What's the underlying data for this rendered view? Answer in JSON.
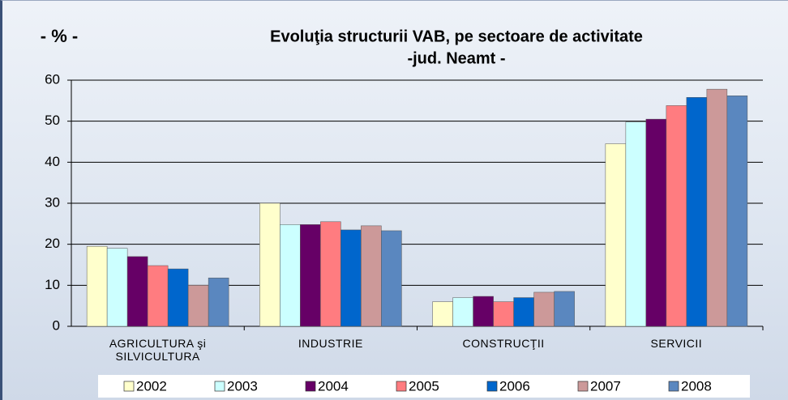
{
  "chart_data": {
    "type": "bar",
    "title": "Evoluţia structurii VAB, pe sectoare de activitate",
    "subtitle": "-jud. Neamt -",
    "y_label": "- % -",
    "categories": [
      "AGRICULTURA şi SILVICULTURA",
      "INDUSTRIE",
      "CONSTRUCŢII",
      "SERVICII"
    ],
    "series": [
      {
        "name": "2002",
        "color": "#ffffcc",
        "values": [
          19.5,
          30,
          6,
          44.5
        ]
      },
      {
        "name": "2003",
        "color": "#ccffff",
        "values": [
          19,
          24.8,
          7,
          49.8
        ]
      },
      {
        "name": "2004",
        "color": "#660066",
        "values": [
          17,
          24.8,
          7.3,
          50.5
        ]
      },
      {
        "name": "2005",
        "color": "#ff7c80",
        "values": [
          14.8,
          25.5,
          6,
          53.8
        ]
      },
      {
        "name": "2006",
        "color": "#0066cc",
        "values": [
          14,
          23.5,
          7,
          55.8
        ]
      },
      {
        "name": "2007",
        "color": "#cc9999",
        "values": [
          10,
          24.5,
          8.3,
          57.8
        ]
      },
      {
        "name": "2008",
        "color": "#5a87bf",
        "values": [
          11.8,
          23.3,
          8.5,
          56.2
        ]
      }
    ],
    "ylim": [
      0,
      60
    ],
    "yticks": [
      0,
      10,
      20,
      30,
      40,
      50,
      60
    ],
    "grid": true,
    "legend": "bottom"
  }
}
